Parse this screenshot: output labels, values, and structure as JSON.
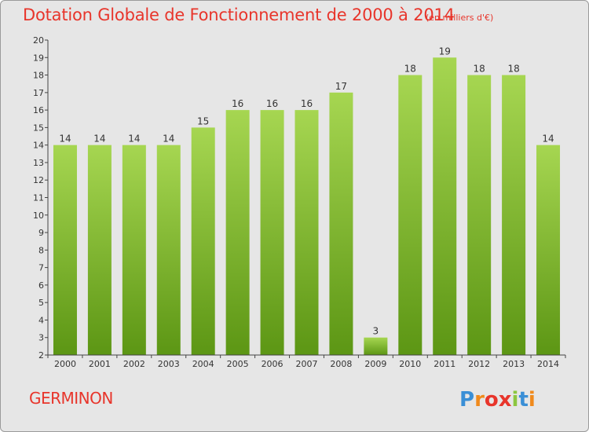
{
  "chart_data": {
    "type": "bar",
    "title": "Dotation Globale de Fonctionnement de 2000 à 2014",
    "subtitle": "(en milliers d'€)",
    "categories": [
      "2000",
      "2001",
      "2002",
      "2003",
      "2004",
      "2005",
      "2006",
      "2007",
      "2008",
      "2009",
      "2010",
      "2011",
      "2012",
      "2013",
      "2014"
    ],
    "values": [
      14,
      14,
      14,
      14,
      15,
      16,
      16,
      16,
      17,
      3,
      18,
      19,
      18,
      18,
      14
    ],
    "ylim": [
      2,
      20
    ],
    "yticks": [
      2,
      3,
      4,
      5,
      6,
      7,
      8,
      9,
      10,
      11,
      12,
      13,
      14,
      15,
      16,
      17,
      18,
      19,
      20
    ],
    "grid": false,
    "colors": {
      "bar_light": "#9fd04a",
      "bar_dark": "#5f9a16",
      "title": "#e8352b",
      "text": "#333333"
    }
  },
  "commune": "GERMINON",
  "logo": {
    "text": "Proxiti",
    "icon": "proxiti-logo"
  }
}
